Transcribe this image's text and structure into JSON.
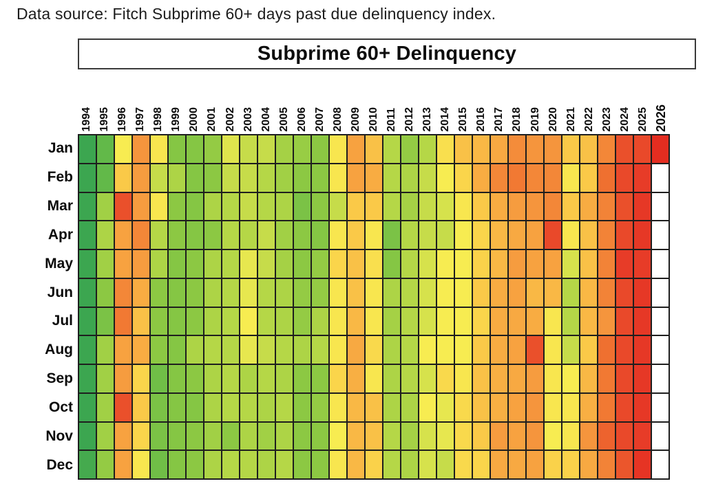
{
  "page": {
    "caption": "Data source: Fitch Subprime 60+ days past due delinquency index.",
    "title": "Subprime 60+ Delinquency"
  },
  "chart_data": {
    "type": "heatmap",
    "title": "Subprime 60+ Delinquency",
    "x_categories": [
      "1994",
      "1995",
      "1996",
      "1997",
      "1998",
      "1999",
      "2000",
      "2001",
      "2002",
      "2003",
      "2004",
      "2005",
      "2006",
      "2007",
      "2008",
      "2009",
      "2010",
      "2011",
      "2012",
      "2013",
      "2014",
      "2015",
      "2016",
      "2017",
      "2018",
      "2019",
      "2020",
      "2021",
      "2022",
      "2023",
      "2024",
      "2025",
      "2026"
    ],
    "y_categories": [
      "Jan",
      "Feb",
      "Mar",
      "Apr",
      "May",
      "Jun",
      "Jul",
      "Aug",
      "Sep",
      "Oct",
      "Nov",
      "Dec"
    ],
    "emphasized_x": "2026",
    "legend": "none",
    "grid_lines": true,
    "scale": {
      "min": 0,
      "max": 100,
      "green_end": "low",
      "red_end": "high"
    },
    "no_data_color": "#FFFFFF",
    "colormap_stops": [
      [
        0,
        "#2E9E52"
      ],
      [
        18,
        "#62B949"
      ],
      [
        30,
        "#8CC843"
      ],
      [
        40,
        "#B5D747"
      ],
      [
        48,
        "#F7EC51"
      ],
      [
        56,
        "#FAD24A"
      ],
      [
        64,
        "#F8AF43"
      ],
      [
        72,
        "#F5953D"
      ],
      [
        80,
        "#EF7030"
      ],
      [
        88,
        "#E73C28"
      ],
      [
        100,
        "#E3251C"
      ]
    ],
    "rows": [
      {
        "month": "Jan",
        "levels": [
          5,
          18,
          48,
          72,
          50,
          28,
          28,
          32,
          45,
          42,
          42,
          36,
          33,
          30,
          50,
          68,
          60,
          40,
          32,
          40,
          52,
          60,
          62,
          66,
          74,
          72,
          72,
          58,
          60,
          75,
          85,
          86,
          96
        ]
      },
      {
        "month": "Feb",
        "levels": [
          5,
          18,
          58,
          70,
          42,
          38,
          28,
          30,
          42,
          42,
          40,
          35,
          30,
          30,
          50,
          68,
          65,
          40,
          38,
          42,
          48,
          55,
          65,
          75,
          78,
          75,
          75,
          50,
          58,
          80,
          86,
          88,
          null
        ]
      },
      {
        "month": "Mar",
        "levels": [
          5,
          35,
          85,
          70,
          50,
          30,
          28,
          38,
          40,
          42,
          40,
          38,
          25,
          30,
          42,
          58,
          58,
          40,
          36,
          42,
          44,
          50,
          58,
          65,
          70,
          72,
          75,
          58,
          65,
          76,
          85,
          90,
          null
        ]
      },
      {
        "month": "Apr",
        "levels": [
          5,
          38,
          68,
          75,
          40,
          30,
          28,
          30,
          40,
          40,
          42,
          35,
          30,
          28,
          50,
          58,
          50,
          25,
          40,
          42,
          42,
          48,
          55,
          62,
          66,
          68,
          86,
          50,
          60,
          76,
          86,
          90,
          null
        ]
      },
      {
        "month": "May",
        "levels": [
          5,
          35,
          68,
          70,
          38,
          28,
          30,
          38,
          40,
          46,
          42,
          36,
          30,
          32,
          55,
          60,
          52,
          28,
          40,
          44,
          48,
          48,
          56,
          62,
          70,
          68,
          68,
          44,
          60,
          76,
          88,
          88,
          null
        ]
      },
      {
        "month": "Jun",
        "levels": [
          5,
          30,
          75,
          65,
          30,
          28,
          30,
          38,
          40,
          46,
          40,
          38,
          32,
          32,
          50,
          60,
          50,
          38,
          40,
          44,
          48,
          48,
          58,
          65,
          68,
          62,
          62,
          40,
          62,
          76,
          86,
          90,
          null
        ]
      },
      {
        "month": "Jul",
        "levels": [
          5,
          25,
          78,
          60,
          30,
          28,
          30,
          38,
          40,
          48,
          40,
          38,
          32,
          38,
          50,
          62,
          50,
          36,
          40,
          44,
          48,
          48,
          55,
          65,
          66,
          65,
          50,
          40,
          62,
          72,
          86,
          90,
          null
        ]
      },
      {
        "month": "Aug",
        "levels": [
          5,
          35,
          68,
          65,
          30,
          28,
          38,
          40,
          40,
          46,
          42,
          40,
          38,
          40,
          50,
          66,
          54,
          38,
          40,
          48,
          48,
          48,
          58,
          65,
          68,
          85,
          50,
          42,
          58,
          80,
          86,
          90,
          null
        ]
      },
      {
        "month": "Sep",
        "levels": [
          5,
          35,
          70,
          55,
          22,
          28,
          30,
          38,
          40,
          38,
          40,
          38,
          30,
          30,
          55,
          64,
          50,
          38,
          40,
          44,
          54,
          50,
          60,
          64,
          66,
          70,
          50,
          48,
          62,
          78,
          86,
          90,
          null
        ]
      },
      {
        "month": "Oct",
        "levels": [
          5,
          35,
          85,
          58,
          25,
          28,
          28,
          38,
          40,
          40,
          38,
          40,
          30,
          32,
          50,
          62,
          60,
          38,
          38,
          48,
          46,
          54,
          60,
          64,
          68,
          72,
          50,
          50,
          64,
          78,
          86,
          90,
          null
        ]
      },
      {
        "month": "Nov",
        "levels": [
          5,
          35,
          68,
          55,
          25,
          28,
          30,
          35,
          30,
          38,
          35,
          38,
          30,
          30,
          48,
          62,
          60,
          40,
          36,
          44,
          46,
          54,
          58,
          70,
          68,
          72,
          48,
          50,
          72,
          82,
          86,
          88,
          null
        ]
      },
      {
        "month": "Dec",
        "levels": [
          8,
          32,
          68,
          50,
          22,
          28,
          30,
          38,
          40,
          40,
          38,
          40,
          30,
          30,
          50,
          62,
          56,
          40,
          38,
          44,
          42,
          54,
          55,
          66,
          66,
          68,
          56,
          56,
          66,
          76,
          84,
          92,
          null
        ]
      }
    ]
  }
}
